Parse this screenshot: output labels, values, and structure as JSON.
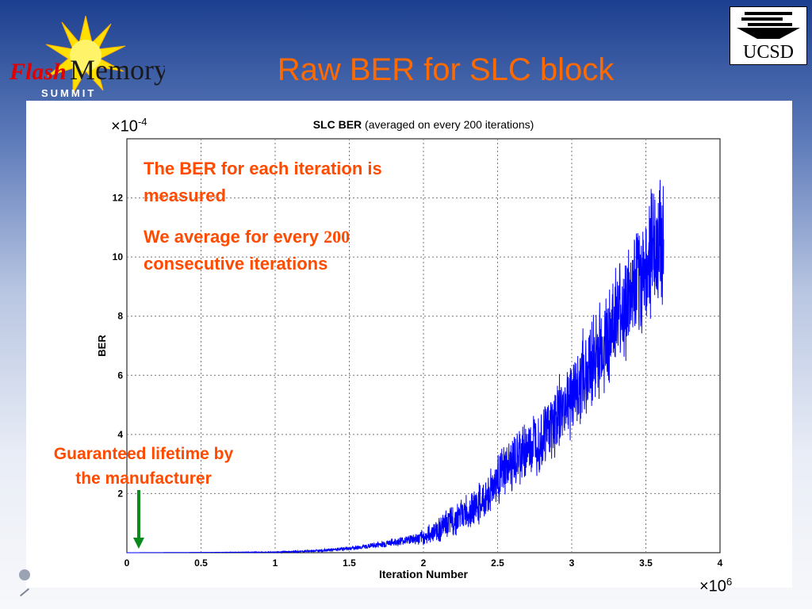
{
  "slide": {
    "title": "Raw BER for SLC block",
    "logo_left": {
      "line1": "Flash",
      "line2": "Memory",
      "line3": "SUMMIT"
    },
    "logo_right": {
      "text": "UCSD"
    }
  },
  "annotations": {
    "note1": "The BER for each iteration is measured",
    "note2_prefix": "We average for every ",
    "note2_number": "200",
    "note2_suffix": " consecutive iterations",
    "guarantee": "Guaranteed lifetime by the manufacturer",
    "y_multiplier_base": "×10",
    "y_multiplier_exp": "-4",
    "x_multiplier_base": "×10",
    "x_multiplier_exp": "6"
  },
  "colors": {
    "accent": "#ff6a00",
    "annotation": "#ff4a00",
    "series": "#0000ff",
    "arrow": "#0a8a1a"
  },
  "chart_data": {
    "type": "line",
    "title_bold": "SLC BER",
    "title_rest": " (averaged on every 200 iterations)",
    "xlabel": "Iteration Number",
    "ylabel": "BER",
    "xlim": [
      0,
      4
    ],
    "ylim": [
      0,
      14
    ],
    "x_ticks": [
      0,
      0.5,
      1,
      1.5,
      2,
      2.5,
      3,
      3.5,
      4
    ],
    "x_tick_labels": [
      "0",
      "0.5",
      "1",
      "1.5",
      "2",
      "2.5",
      "3",
      "3.5",
      "4"
    ],
    "y_ticks": [
      2,
      4,
      6,
      8,
      10,
      12
    ],
    "y_tick_labels": [
      "2",
      "4",
      "6",
      "8",
      "10",
      "12"
    ],
    "grid": true,
    "arrow_x": 0.08,
    "series": [
      {
        "x": [
          0,
          0.5,
          1.0,
          1.2,
          1.4,
          1.6,
          1.8,
          1.9,
          2.0,
          2.1,
          2.2,
          2.3,
          2.4,
          2.5,
          2.6,
          2.7,
          2.8,
          2.9,
          3.0,
          3.1,
          3.2,
          3.3,
          3.4,
          3.5,
          3.55,
          3.6,
          3.62
        ],
        "values": [
          0,
          0.01,
          0.02,
          0.05,
          0.1,
          0.2,
          0.35,
          0.45,
          0.5,
          0.8,
          1.1,
          1.4,
          1.7,
          2.5,
          3.0,
          3.5,
          4.0,
          4.6,
          5.3,
          6.2,
          6.9,
          7.9,
          8.6,
          9.6,
          10.2,
          10.6,
          10.9
        ],
        "noise": [
          0,
          0,
          0.01,
          0.02,
          0.03,
          0.05,
          0.08,
          0.1,
          0.15,
          0.25,
          0.3,
          0.35,
          0.4,
          0.5,
          0.55,
          0.6,
          0.65,
          0.7,
          0.8,
          0.9,
          0.95,
          1.0,
          1.1,
          1.2,
          1.2,
          1.3,
          1.3
        ]
      }
    ]
  }
}
